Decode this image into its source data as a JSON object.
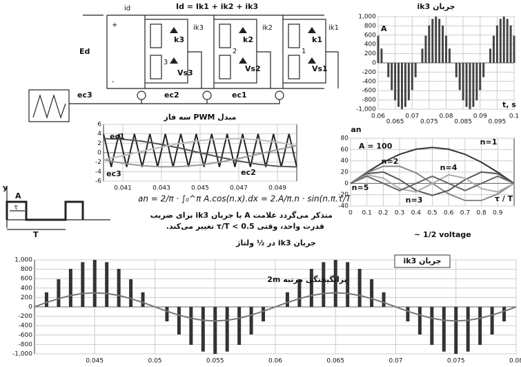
{
  "chart_data": [
    {
      "type": "bar",
      "title": "جریان ik3",
      "color": "#444",
      "x": [
        0.06,
        0.061,
        0.062,
        0.063,
        0.064,
        0.065,
        0.066,
        0.067,
        0.068,
        0.069,
        0.07,
        0.071,
        0.072,
        0.073,
        0.074,
        0.075,
        0.076,
        0.077,
        0.078,
        0.079,
        0.08,
        0.081,
        0.082,
        0.083,
        0.084,
        0.085,
        0.086,
        0.087,
        0.088,
        0.089,
        0.09,
        0.091,
        0.092,
        0.093,
        0.094,
        0.095,
        0.096,
        0.097,
        0.098,
        0.099,
        0.1
      ],
      "values": [
        588,
        309,
        0,
        -309,
        -588,
        -809,
        -951,
        -1000,
        -951,
        -809,
        -588,
        -309,
        0,
        309,
        588,
        809,
        951,
        1000,
        951,
        809,
        588,
        309,
        0,
        -309,
        -588,
        -809,
        -951,
        -1000,
        -951,
        -809,
        -588,
        -309,
        0,
        309,
        588,
        809,
        951,
        1000,
        951,
        809,
        588
      ],
      "xlim": [
        0.06,
        0.1
      ],
      "ylim": [
        -1000,
        1000
      ],
      "xticks": [
        0.06,
        0.065,
        0.07,
        0.075,
        0.08,
        0.085,
        0.09,
        0.095,
        0.1
      ],
      "yticks": [
        {
          "value": -1000,
          "label": "-1,000"
        },
        -800,
        -600,
        -400,
        -200,
        0,
        200,
        400,
        600,
        800,
        {
          "value": 1000,
          "label": "1,000"
        }
      ],
      "grid": true,
      "annotations": [
        "A",
        "t, s"
      ]
    },
    {
      "type": "line",
      "title": "مبدل PWM سه فاز",
      "x": [
        0.04,
        0.041,
        0.042,
        0.043,
        0.044,
        0.045,
        0.046,
        0.047,
        0.048,
        0.049,
        0.05
      ],
      "series": [
        {
          "color": "#222",
          "x": [
            0.04,
            0.0404,
            0.0408,
            0.0412,
            0.0416,
            0.042,
            0.0424,
            0.0428,
            0.0432,
            0.0436,
            0.044,
            0.0444,
            0.0448,
            0.0452,
            0.0456,
            0.046,
            0.0464,
            0.0468,
            0.0472,
            0.0476,
            0.048,
            0.0484,
            0.0488,
            0.0492,
            0.0496,
            0.05
          ],
          "values": [
            4,
            -3,
            4,
            -3,
            4,
            -3,
            4,
            -3,
            4,
            -3,
            4,
            -3,
            4,
            -3,
            4,
            -3,
            4,
            -3,
            4,
            -3,
            4,
            -3,
            4,
            -3,
            4,
            -3
          ]
        },
        {
          "name": "ec1",
          "color": "#555",
          "values": [
            3,
            2.85,
            2.43,
            1.76,
            0.93,
            0,
            -0.93,
            -1.76,
            -2.43,
            -2.85,
            -3
          ]
        },
        {
          "name": "ec2",
          "color": "#999",
          "values": [
            -1.5,
            -2.23,
            -2.74,
            -2.98,
            -2.93,
            -2.6,
            -2.01,
            -1.22,
            -0.31,
            0.62,
            1.5
          ]
        },
        {
          "name": "ec3",
          "color": "#bbb",
          "values": [
            -1.5,
            -0.62,
            0.31,
            1.22,
            2,
            2.6,
            2.94,
            2.98,
            2.74,
            2.23,
            1.5
          ]
        }
      ],
      "xlim": [
        0.04,
        0.05
      ],
      "ylim": [
        -6,
        6
      ],
      "xticks": [
        0.041,
        0.043,
        0.045,
        0.047,
        0.049
      ],
      "yticks": [
        -6,
        -4,
        -2,
        0,
        2,
        4,
        6
      ],
      "grid": true
    },
    {
      "type": "line",
      "xlabel": "τ / T",
      "ylabel": "an",
      "x": [
        0,
        0.1,
        0.2,
        0.3,
        0.4,
        0.5,
        0.6,
        0.7,
        0.8,
        0.9,
        1
      ],
      "series": [
        {
          "name": "n=1",
          "color": "#333",
          "values": [
            0,
            19.67,
            37.42,
            51.5,
            60.54,
            63.66,
            60.54,
            51.5,
            37.42,
            19.67,
            0
          ]
        },
        {
          "name": "n=2",
          "color": "#888",
          "values": [
            0,
            18.71,
            30.27,
            30.27,
            18.71,
            0,
            -18.71,
            -30.27,
            -30.27,
            -18.71,
            0
          ]
        },
        {
          "name": "n=3",
          "color": "#555",
          "values": [
            0,
            17.17,
            20.18,
            6.56,
            -12.47,
            -21.22,
            -12.47,
            6.56,
            20.18,
            17.17,
            0
          ]
        },
        {
          "name": "n=4",
          "color": "#aaa",
          "values": [
            0,
            15.14,
            9.36,
            -9.36,
            -15.14,
            0,
            15.14,
            9.36,
            -9.36,
            -15.14,
            0
          ]
        },
        {
          "name": "n=5",
          "color": "#666",
          "values": [
            0,
            12.73,
            0,
            -12.73,
            0,
            12.73,
            0,
            -12.73,
            0,
            12.73,
            0
          ]
        }
      ],
      "xlim": [
        0,
        1
      ],
      "ylim": [
        -40,
        80
      ],
      "xticks": [
        0,
        0.1,
        0.2,
        0.3,
        0.4,
        0.5,
        0.6,
        0.7,
        0.8,
        0.9
      ],
      "yticks": [
        -40,
        -20,
        0,
        20,
        40,
        60,
        80
      ],
      "grid": true,
      "annotations": [
        "A = 100",
        "~ 1/2 voltage"
      ]
    },
    {
      "type": "bar",
      "title": "جریان ik3 در ½ ولتاژ",
      "x": [
        0.04,
        0.041,
        0.042,
        0.043,
        0.044,
        0.045,
        0.046,
        0.047,
        0.048,
        0.049,
        0.05,
        0.051,
        0.052,
        0.053,
        0.054,
        0.055,
        0.056,
        0.057,
        0.058,
        0.059,
        0.06,
        0.061,
        0.062,
        0.063,
        0.064,
        0.065,
        0.066,
        0.067,
        0.068,
        0.069,
        0.07,
        0.071,
        0.072,
        0.073,
        0.074,
        0.075,
        0.076,
        0.077,
        0.078,
        0.079,
        0.08
      ],
      "series": [
        {
          "name": "جریان ik3",
          "color": "#333",
          "style": "bar",
          "values": [
            0,
            309,
            588,
            809,
            951,
            1000,
            951,
            809,
            588,
            309,
            0,
            -309,
            -588,
            -809,
            -951,
            -1000,
            -951,
            -809,
            -588,
            -309,
            0,
            309,
            588,
            809,
            951,
            1000,
            951,
            809,
            588,
            309,
            0,
            -309,
            -588,
            -809,
            -951,
            -1000,
            -951,
            -809,
            -588,
            -309,
            0
          ]
        },
        {
          "name": "برانگیختگی مرتبه 2m",
          "color": "#777",
          "style": "line",
          "values": [
            0,
            93,
            176,
            243,
            285,
            300,
            285,
            243,
            176,
            93,
            0,
            -93,
            -176,
            -243,
            -285,
            -300,
            -285,
            -243,
            -176,
            -93,
            0,
            93,
            176,
            243,
            285,
            300,
            285,
            243,
            176,
            93,
            0,
            -93,
            -176,
            -243,
            -285,
            -300,
            -285,
            -243,
            -176,
            -93,
            0
          ]
        }
      ],
      "xlim": [
        0.04,
        0.08
      ],
      "ylim": [
        -1000,
        1000
      ],
      "xticks": [
        0.045,
        0.05,
        0.055,
        0.06,
        0.065,
        0.07,
        0.075,
        0.08
      ],
      "yticks": [
        {
          "value": -1000,
          "label": "-1,000"
        },
        -800,
        -600,
        -400,
        -200,
        0,
        200,
        400,
        600,
        800,
        {
          "value": 1000,
          "label": "1,000"
        }
      ],
      "grid": true
    }
  ],
  "circuit": {
    "id": "id",
    "equation": "Id = Ik1 + ik2 + ik3",
    "source": "Ed",
    "plus": "+",
    "minus": "-",
    "switches": [
      "k3",
      "k2",
      "k1"
    ],
    "currents": [
      "ik3",
      "ik2",
      "ik1"
    ],
    "nodes": [
      "3",
      "2",
      "1"
    ],
    "voltages": [
      "Vs3",
      "Vs2",
      "Vs1"
    ],
    "errors": [
      "ec3",
      "ec2",
      "ec1"
    ]
  },
  "pulse": {
    "y": "y",
    "A": "A",
    "tau": "τ",
    "T": "T"
  },
  "formula": "an = 2/π · ∫₀^π A.cos(n.x).dx = 2.A/π.n · sin(n.π.τ/T)",
  "note": [
    "متذکر می‌گردد علامت A با جریان ik3 برای ضریب",
    "قدرت واحد، وقتی τ/T < 0.5 تغییر می‌کند."
  ]
}
